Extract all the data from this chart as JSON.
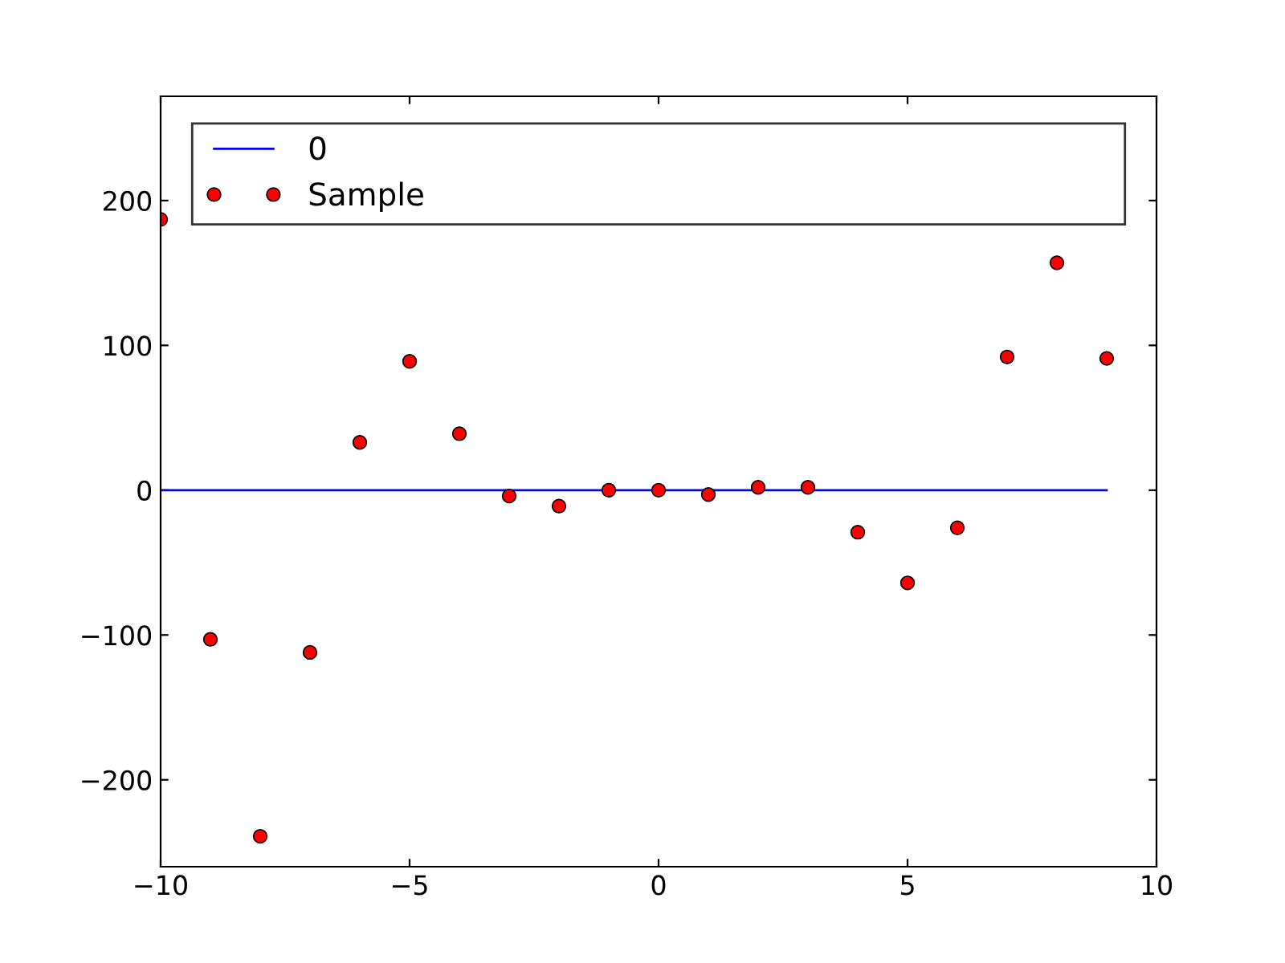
{
  "chart_data": {
    "type": "scatter",
    "xlim": [
      -10,
      10
    ],
    "xticks": [
      -10,
      -5,
      0,
      5,
      10
    ],
    "ylim": [
      -260,
      272
    ],
    "yticks": [
      -200,
      -100,
      0,
      100,
      200
    ],
    "grid": false,
    "legend": "top",
    "series": [
      {
        "name": "0",
        "type": "line",
        "marker": "none",
        "color": "#0000ff",
        "x": [
          -10,
          9
        ],
        "values": [
          0,
          0
        ]
      },
      {
        "name": "Sample",
        "marker": "circle",
        "color": "#ff0000",
        "x": [
          -10,
          -9,
          -8,
          -7,
          -6,
          -5,
          -4,
          -3,
          -2,
          -1,
          0,
          1,
          2,
          3,
          4,
          5,
          6,
          7,
          8,
          9
        ],
        "values": [
          187,
          -103,
          -239,
          -112,
          33,
          89,
          39,
          -4,
          -11,
          0,
          0,
          -3,
          2,
          2,
          -29,
          -64,
          -26,
          92,
          157,
          91
        ]
      }
    ]
  }
}
